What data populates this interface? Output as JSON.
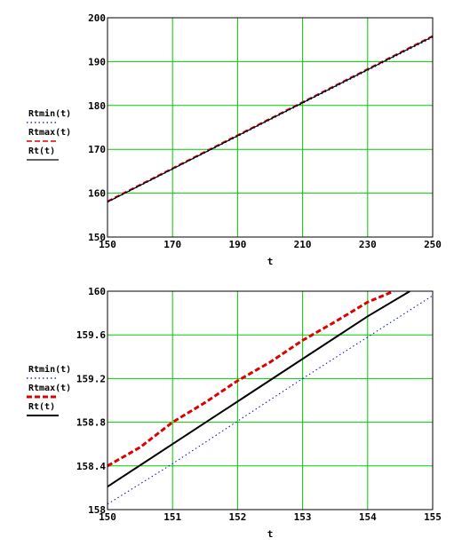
{
  "chart_data": [
    {
      "type": "line",
      "xlabel": "t",
      "xlim": [
        150,
        250
      ],
      "ylim": [
        150,
        200
      ],
      "xticks": [
        "150",
        "170",
        "190",
        "210",
        "230",
        "250"
      ],
      "yticks": [
        "150",
        "160",
        "170",
        "180",
        "190",
        "200"
      ],
      "grid": true,
      "grid_color": "#00cc00",
      "legend_position": "left",
      "series": [
        {
          "name": "Rtmin(t)",
          "style": "dotted",
          "color": "#0000cc",
          "x": [
            150,
            250
          ],
          "y": [
            157.9,
            195.5
          ]
        },
        {
          "name": "Rtmax(t)",
          "style": "dashed",
          "color": "#dd0000",
          "x": [
            150,
            250
          ],
          "y": [
            158.2,
            195.9
          ]
        },
        {
          "name": "Rt(t)",
          "style": "solid",
          "color": "#000000",
          "x": [
            150,
            250
          ],
          "y": [
            158.0,
            195.7
          ]
        }
      ]
    },
    {
      "type": "line",
      "xlabel": "t",
      "xlim": [
        150,
        155
      ],
      "ylim": [
        158,
        160
      ],
      "xticks": [
        "150",
        "151",
        "152",
        "153",
        "154",
        "155"
      ],
      "yticks": [
        "158",
        "158.4",
        "158.8",
        "159.2",
        "159.6",
        "160"
      ],
      "grid": true,
      "grid_color": "#00cc00",
      "legend_position": "left",
      "series": [
        {
          "name": "Rtmin(t)",
          "style": "dotted",
          "color": "#0000cc",
          "x": [
            150,
            151,
            152,
            153,
            154,
            155
          ],
          "y": [
            158.05,
            158.42,
            158.81,
            159.2,
            159.58,
            159.96
          ]
        },
        {
          "name": "Rtmax(t)",
          "style": "dashed",
          "color": "#dd0000",
          "x": [
            150,
            150.5,
            151,
            151.5,
            152,
            152.5,
            153,
            153.5,
            154,
            154.4
          ],
          "y": [
            158.4,
            158.57,
            158.8,
            158.98,
            159.18,
            159.35,
            159.55,
            159.72,
            159.9,
            160.0
          ]
        },
        {
          "name": "Rt(t)",
          "style": "solid",
          "color": "#000000",
          "x": [
            150,
            151,
            152,
            153,
            154,
            154.65
          ],
          "y": [
            158.21,
            158.6,
            158.99,
            159.38,
            159.77,
            160.0
          ]
        }
      ]
    }
  ]
}
